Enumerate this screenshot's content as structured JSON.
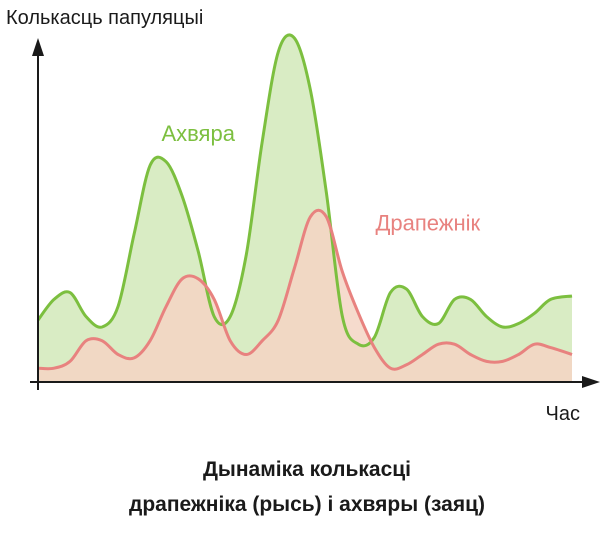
{
  "chart_data": {
    "type": "area",
    "ylabel": "Колькасць папуляцыі",
    "xlabel": "Час",
    "title_lines": [
      "Дынаміка колькасці",
      "драпежніка (рысь) і ахвяры (заяц)"
    ],
    "xlim": [
      0,
      100
    ],
    "ylim": [
      0,
      100
    ],
    "axis_ticks": false,
    "grid": false,
    "legend": "inline labels",
    "series": [
      {
        "name": "Ахвяра",
        "color": "#7cbf3f",
        "fill": "#d9ecc4",
        "label_anchor": {
          "x": 30,
          "y": 70
        },
        "x": [
          0,
          3,
          6,
          9,
          12,
          15,
          18,
          21,
          24,
          27,
          30,
          33,
          36,
          39,
          42,
          45,
          48,
          51,
          54,
          57,
          60,
          63,
          66,
          69,
          72,
          75,
          78,
          81,
          84,
          87,
          90,
          93,
          96,
          100
        ],
        "values": [
          18,
          24,
          26,
          19,
          16,
          22,
          43,
          63,
          64,
          54,
          38,
          19,
          19,
          37,
          70,
          96,
          100,
          85,
          55,
          19,
          11,
          13,
          26,
          27,
          19,
          17,
          24,
          24,
          19,
          16,
          17,
          20,
          24,
          25
        ]
      },
      {
        "name": "Драпежнік",
        "color": "#e8827f",
        "fill": "#f4d5c4",
        "label_anchor": {
          "x": 73,
          "y": 44
        },
        "x": [
          0,
          3,
          6,
          9,
          12,
          15,
          18,
          21,
          24,
          27,
          30,
          33,
          36,
          39,
          42,
          45,
          48,
          51,
          54,
          57,
          60,
          63,
          66,
          69,
          72,
          75,
          78,
          81,
          84,
          87,
          90,
          93,
          96,
          100
        ],
        "values": [
          4,
          4,
          6,
          12,
          12,
          8,
          7,
          12,
          22,
          30,
          30,
          24,
          12,
          8,
          12,
          18,
          33,
          48,
          48,
          32,
          20,
          10,
          4,
          5,
          8,
          11,
          11,
          8,
          6,
          6,
          8,
          11,
          10,
          8
        ]
      }
    ]
  }
}
